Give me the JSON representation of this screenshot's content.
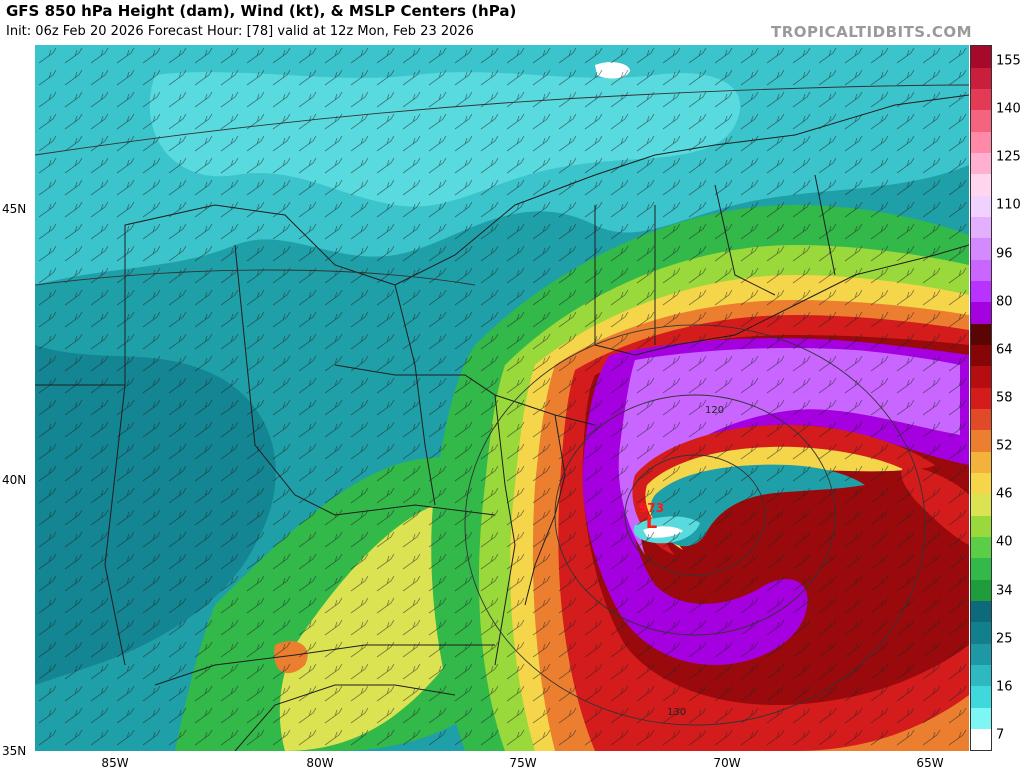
{
  "title": "GFS 850 hPa Height (dam), Wind (kt), & MSLP Centers (hPa)",
  "subtitle": "Init: 06z Feb 20 2026   Forecast Hour: [78]   valid at 12z Mon, Feb 23 2026",
  "brand": "TROPICALTIDBITS.COM",
  "latitude_labels": [
    "45N",
    "40N",
    "35N"
  ],
  "longitude_labels": [
    "85W",
    "80W",
    "75W",
    "70W",
    "65W"
  ],
  "colorbar": {
    "labels": [
      "155",
      "140",
      "125",
      "110",
      "96",
      "80",
      "64",
      "58",
      "52",
      "46",
      "40",
      "34",
      "25",
      "16",
      "7"
    ],
    "colors": [
      "#ffffff",
      "#7ff6f6",
      "#3fd8dc",
      "#2eb8c0",
      "#1e98a4",
      "#117f8c",
      "#0c6a7a",
      "#1f9c3c",
      "#33b84a",
      "#5ccd46",
      "#9ad93c",
      "#dbe353",
      "#f5d64a",
      "#f2b23c",
      "#ec7f2f",
      "#e04a26",
      "#d41c1c",
      "#b50d10",
      "#860608",
      "#5a0404",
      "#a400e0",
      "#b833ff",
      "#c866ff",
      "#d38aff",
      "#e2b0ff",
      "#f1d1ff",
      "#ffd6ee",
      "#ffb0d0",
      "#ff8aa8",
      "#f5647e",
      "#e33a55",
      "#c91e3c",
      "#a60a2a"
    ]
  },
  "low_center": {
    "value": "973",
    "letter": "L",
    "color": "#ff1a1a"
  },
  "contour_labels": [
    "120",
    "130"
  ],
  "wind_field": {
    "color": "#222222",
    "units": "kt"
  },
  "height_contour_color": "#333333",
  "border_color": "#2a2a2a"
}
